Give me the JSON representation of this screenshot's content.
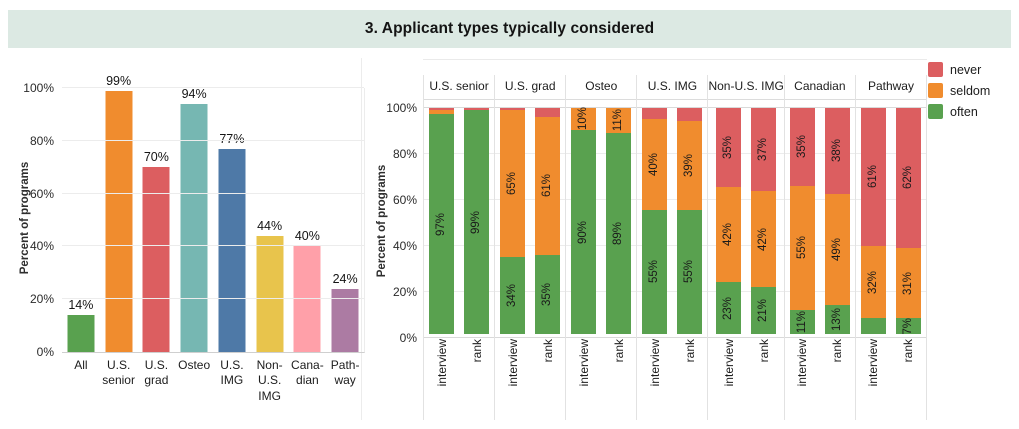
{
  "title": "3. Applicant types typically considered",
  "title_band_color": "#dce9e3",
  "chart_data": [
    {
      "type": "bar",
      "title": "",
      "xlabel": "",
      "ylabel": "Percent of programs",
      "ylim": [
        0,
        100
      ],
      "yticks": [
        "0%",
        "20%",
        "40%",
        "60%",
        "80%",
        "100%"
      ],
      "grid": true,
      "categories": [
        "All",
        "U.S. senior",
        "U.S. grad",
        "Osteo",
        "U.S. IMG",
        "Non-U.S. IMG",
        "Canadian",
        "Pathway"
      ],
      "category_display": [
        "All",
        "U.S.\nsenior",
        "U.S.\ngrad",
        "Osteo",
        "U.S.\nIMG",
        "Non-\nU.S.\nIMG",
        "Cana-\ndian",
        "Path-\nway"
      ],
      "values": [
        14,
        99,
        70,
        94,
        77,
        44,
        40,
        24
      ],
      "value_labels": [
        "14%",
        "99%",
        "70%",
        "94%",
        "77%",
        "44%",
        "40%",
        "24%"
      ],
      "colors": [
        "#59a14f",
        "#f08c2e",
        "#dc5e60",
        "#76b7b2",
        "#4e79a7",
        "#e8c44c",
        "#ffa0a9",
        "#ac7ba3"
      ]
    },
    {
      "type": "stacked-bar",
      "title": "",
      "xlabel": "",
      "ylabel": "Percent of programs",
      "ylim": [
        0,
        100
      ],
      "yticks": [
        "0%",
        "20%",
        "40%",
        "60%",
        "80%",
        "100%"
      ],
      "grid": true,
      "legend_position": "top-right",
      "legend": [
        {
          "label": "never",
          "color": "#dc5e60"
        },
        {
          "label": "seldom",
          "color": "#f08c2e"
        },
        {
          "label": "often",
          "color": "#59a14f"
        }
      ],
      "segment_colors": {
        "often": "#59a14f",
        "seldom": "#f08c2e",
        "never": "#dc5e60"
      },
      "bar_x_labels": [
        "interview",
        "rank"
      ],
      "groups": [
        {
          "name": "U.S. senior",
          "bars": [
            {
              "x": "interview",
              "segments": [
                {
                  "name": "often",
                  "value": 97,
                  "label": "97%"
                },
                {
                  "name": "seldom",
                  "value": 2,
                  "label": ""
                },
                {
                  "name": "never",
                  "value": 1,
                  "label": ""
                }
              ]
            },
            {
              "x": "rank",
              "segments": [
                {
                  "name": "often",
                  "value": 99,
                  "label": "99%"
                },
                {
                  "name": "seldom",
                  "value": 0,
                  "label": ""
                },
                {
                  "name": "never",
                  "value": 1,
                  "label": ""
                }
              ]
            }
          ]
        },
        {
          "name": "U.S. grad",
          "bars": [
            {
              "x": "interview",
              "segments": [
                {
                  "name": "often",
                  "value": 34,
                  "label": "34%"
                },
                {
                  "name": "seldom",
                  "value": 65,
                  "label": "65%"
                },
                {
                  "name": "never",
                  "value": 1,
                  "label": ""
                }
              ]
            },
            {
              "x": "rank",
              "segments": [
                {
                  "name": "often",
                  "value": 35,
                  "label": "35%"
                },
                {
                  "name": "seldom",
                  "value": 61,
                  "label": "61%"
                },
                {
                  "name": "never",
                  "value": 4,
                  "label": ""
                }
              ]
            }
          ]
        },
        {
          "name": "Osteo",
          "bars": [
            {
              "x": "interview",
              "segments": [
                {
                  "name": "often",
                  "value": 90,
                  "label": "90%"
                },
                {
                  "name": "seldom",
                  "value": 10,
                  "label": "10%"
                },
                {
                  "name": "never",
                  "value": 0,
                  "label": ""
                }
              ]
            },
            {
              "x": "rank",
              "segments": [
                {
                  "name": "often",
                  "value": 89,
                  "label": "89%"
                },
                {
                  "name": "seldom",
                  "value": 11,
                  "label": "11%"
                },
                {
                  "name": "never",
                  "value": 0,
                  "label": ""
                }
              ]
            }
          ]
        },
        {
          "name": "U.S. IMG",
          "bars": [
            {
              "x": "interview",
              "segments": [
                {
                  "name": "often",
                  "value": 55,
                  "label": "55%"
                },
                {
                  "name": "seldom",
                  "value": 40,
                  "label": "40%"
                },
                {
                  "name": "never",
                  "value": 5,
                  "label": ""
                }
              ]
            },
            {
              "x": "rank",
              "segments": [
                {
                  "name": "often",
                  "value": 55,
                  "label": "55%"
                },
                {
                  "name": "seldom",
                  "value": 39,
                  "label": "39%"
                },
                {
                  "name": "never",
                  "value": 6,
                  "label": ""
                }
              ]
            }
          ]
        },
        {
          "name": "Non-U.S. IMG",
          "bars": [
            {
              "x": "interview",
              "segments": [
                {
                  "name": "often",
                  "value": 23,
                  "label": "23%"
                },
                {
                  "name": "seldom",
                  "value": 42,
                  "label": "42%"
                },
                {
                  "name": "never",
                  "value": 35,
                  "label": "35%"
                }
              ]
            },
            {
              "x": "rank",
              "segments": [
                {
                  "name": "often",
                  "value": 21,
                  "label": "21%"
                },
                {
                  "name": "seldom",
                  "value": 42,
                  "label": "42%"
                },
                {
                  "name": "never",
                  "value": 37,
                  "label": "37%"
                }
              ]
            }
          ]
        },
        {
          "name": "Canadian",
          "bars": [
            {
              "x": "interview",
              "segments": [
                {
                  "name": "often",
                  "value": 11,
                  "label": "11%"
                },
                {
                  "name": "seldom",
                  "value": 55,
                  "label": "55%"
                },
                {
                  "name": "never",
                  "value": 35,
                  "label": "35%"
                }
              ]
            },
            {
              "x": "rank",
              "segments": [
                {
                  "name": "often",
                  "value": 13,
                  "label": "13%"
                },
                {
                  "name": "seldom",
                  "value": 49,
                  "label": "49%"
                },
                {
                  "name": "never",
                  "value": 38,
                  "label": "38%"
                }
              ]
            }
          ]
        },
        {
          "name": "Pathway",
          "bars": [
            {
              "x": "interview",
              "segments": [
                {
                  "name": "often",
                  "value": 7,
                  "label": ""
                },
                {
                  "name": "seldom",
                  "value": 32,
                  "label": "32%"
                },
                {
                  "name": "never",
                  "value": 61,
                  "label": "61%"
                }
              ]
            },
            {
              "x": "rank",
              "segments": [
                {
                  "name": "often",
                  "value": 7,
                  "label": "7%"
                },
                {
                  "name": "seldom",
                  "value": 31,
                  "label": "31%"
                },
                {
                  "name": "never",
                  "value": 62,
                  "label": "62%"
                }
              ]
            }
          ]
        }
      ]
    }
  ]
}
